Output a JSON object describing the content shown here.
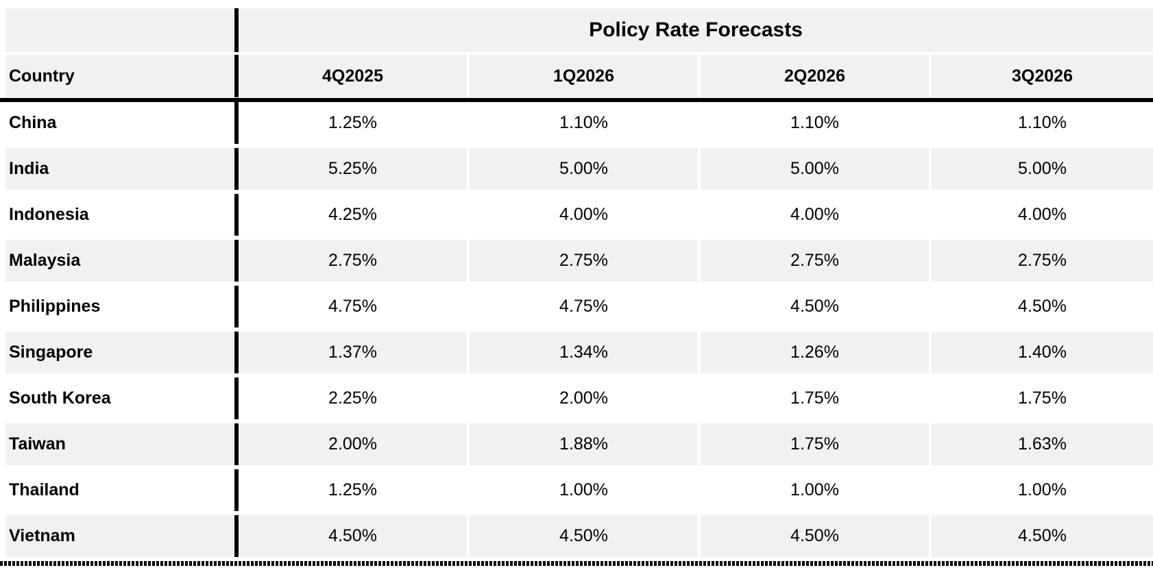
{
  "chart_data": {
    "type": "table",
    "title": "Policy Rate Forecasts",
    "row_header_label": "Country",
    "columns": [
      "4Q2025",
      "1Q2026",
      "2Q2026",
      "3Q2026"
    ],
    "rows": [
      {
        "country": "China",
        "values": [
          "1.25%",
          "1.10%",
          "1.10%",
          "1.10%"
        ]
      },
      {
        "country": "India",
        "values": [
          "5.25%",
          "5.00%",
          "5.00%",
          "5.00%"
        ]
      },
      {
        "country": "Indonesia",
        "values": [
          "4.25%",
          "4.00%",
          "4.00%",
          "4.00%"
        ]
      },
      {
        "country": "Malaysia",
        "values": [
          "2.75%",
          "2.75%",
          "2.75%",
          "2.75%"
        ]
      },
      {
        "country": "Philippines",
        "values": [
          "4.75%",
          "4.75%",
          "4.50%",
          "4.50%"
        ]
      },
      {
        "country": "Singapore",
        "values": [
          "1.37%",
          "1.34%",
          "1.26%",
          "1.40%"
        ]
      },
      {
        "country": "South Korea",
        "values": [
          "2.25%",
          "2.00%",
          "1.75%",
          "1.75%"
        ]
      },
      {
        "country": "Taiwan",
        "values": [
          "2.00%",
          "1.88%",
          "1.75%",
          "1.63%"
        ]
      },
      {
        "country": "Thailand",
        "values": [
          "1.25%",
          "1.00%",
          "1.00%",
          "1.00%"
        ]
      },
      {
        "country": "Vietnam",
        "values": [
          "4.50%",
          "4.50%",
          "4.50%",
          "4.50%"
        ]
      }
    ],
    "layout": {
      "stripe_rows": "even rows (India, Malaysia, Singapore, Taiwan, Vietnam)",
      "grid_on": false,
      "legend_position": "none"
    },
    "colors": {
      "stripe": "#f1f1f1",
      "grid_line": "#000000",
      "background": "#ffffff",
      "text": "#000000"
    }
  }
}
